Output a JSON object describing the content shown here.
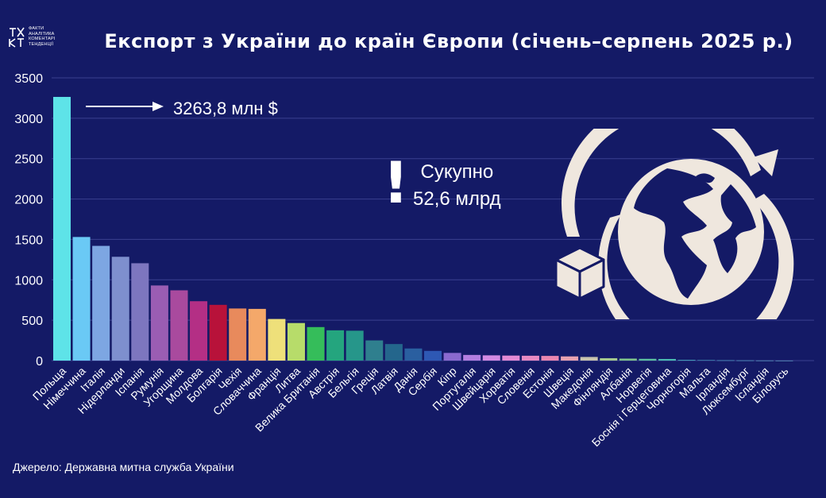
{
  "header": {
    "logo_text": [
      "ФАКТИ",
      "АНАЛІТИКА",
      "КОМЕНТАРІ",
      "ТЕНДЕНЦІЇ"
    ],
    "title": "Експорт з України до країн Європи (січень–серпень 2025 р.)"
  },
  "annotation": {
    "max_label": "3263,8 млн $",
    "total_line1": "Сукупно",
    "total_line2": "52,6 млрд",
    "exclamation": "!"
  },
  "footer": {
    "source": "Джерело: Державна митна служба України"
  },
  "icons": [
    "logo-icon",
    "arrow-right-icon",
    "box-icon",
    "globe-icon",
    "circular-arrow-icon"
  ],
  "chart_data": {
    "type": "bar",
    "ylim": [
      0,
      3500
    ],
    "yticks": [
      0,
      500,
      1000,
      1500,
      2000,
      2500,
      3000,
      3500
    ],
    "grid": true,
    "categories": [
      "Польща",
      "Німеччина",
      "Італія",
      "Нідерланди",
      "Іспанія",
      "Румунія",
      "Угорщина",
      "Молдова",
      "Болгарія",
      "Чехія",
      "Словаччина",
      "Франція",
      "Литва",
      "Велика Британія",
      "Австрія",
      "Бельгія",
      "Греція",
      "Латвія",
      "Данія",
      "Сербія",
      "Кіпр",
      "Португалія",
      "Швейцарія",
      "Хорватія",
      "Словенія",
      "Естонія",
      "Швеція",
      "Македонія",
      "Фінляндія",
      "Албанія",
      "Норвегія",
      "Боснія і Герцеговина",
      "Чорногорія",
      "Мальта",
      "Ірландія",
      "Люксембург",
      "Ісландія",
      "Білорусь"
    ],
    "values": [
      3263.8,
      1530,
      1420,
      1285,
      1205,
      930,
      870,
      735,
      690,
      645,
      640,
      515,
      465,
      415,
      375,
      370,
      250,
      205,
      150,
      120,
      95,
      70,
      65,
      62,
      60,
      58,
      52,
      45,
      30,
      25,
      22,
      20,
      8,
      5,
      3,
      2,
      1,
      0.5
    ],
    "colors": [
      "#5ee3e8",
      "#6ac9f5",
      "#7da6e2",
      "#7e8fce",
      "#7d76bf",
      "#9a5db3",
      "#a94a9e",
      "#b42f85",
      "#b8123a",
      "#e88a5c",
      "#f4a86a",
      "#eee07a",
      "#b7dc6a",
      "#35bd5a",
      "#24a57e",
      "#26968a",
      "#2f7f8e",
      "#24668c",
      "#2a5fa0",
      "#2e58b4",
      "#8a6ad0",
      "#b37ee0",
      "#d28ae2",
      "#e38ad4",
      "#e78ac2",
      "#ea86b0",
      "#e7a2b0",
      "#c9c4ae",
      "#a5c98e",
      "#7fc48c",
      "#5cc0a0",
      "#4bbcb2",
      "#4cb6c6",
      "#58c4d8",
      "#5ec9e2",
      "#6acfe6",
      "#7ad5ea",
      "#86d9ee"
    ]
  }
}
